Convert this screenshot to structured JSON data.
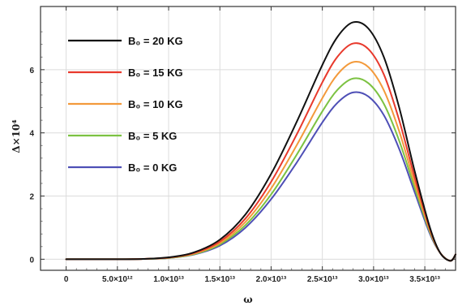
{
  "chart_data": {
    "type": "line",
    "xlabel": "ω",
    "ylabel": "Δ×10⁴",
    "xlim": [
      -2500000000000.0,
      38000000000000.0
    ],
    "ylim": [
      -0.35,
      8.0
    ],
    "x_ticks": [
      0,
      5000000000000.0,
      10000000000000.0,
      15000000000000.0,
      20000000000000.0,
      25000000000000.0,
      30000000000000.0,
      35000000000000.0
    ],
    "x_tick_labels": [
      "0",
      "5.0×10¹²",
      "1.0×10¹³",
      "1.5×10¹³",
      "2.0×10¹³",
      "2.5×10¹³",
      "3.0×10¹³",
      "3.5×10¹³"
    ],
    "y_ticks": [
      0,
      2,
      4,
      6
    ],
    "y_tick_labels": [
      "0",
      "2",
      "4",
      "6"
    ],
    "grid": true,
    "legend_position": "top-left",
    "x": [
      0,
      2500000000000.0,
      5000000000000.0,
      7500000000000.0,
      10000000000000.0,
      12500000000000.0,
      15000000000000.0,
      17500000000000.0,
      20000000000000.0,
      22500000000000.0,
      25000000000000.0,
      26500000000000.0,
      28000000000000.0,
      29500000000000.0,
      31000000000000.0,
      32500000000000.0,
      34000000000000.0,
      35500000000000.0,
      36500000000000.0,
      37500000000000.0,
      38000000000000.0
    ],
    "series": [
      {
        "name": "B₀ = 20 KG",
        "color": "#111111",
        "values": [
          0,
          0.0,
          0.0,
          0.01,
          0.06,
          0.22,
          0.62,
          1.42,
          2.7,
          4.35,
          6.15,
          7.05,
          7.5,
          7.3,
          6.4,
          4.8,
          2.8,
          1.0,
          0.2,
          -0.05,
          0.15
        ]
      },
      {
        "name": "B₀ = 15 KG",
        "color": "#e8392c",
        "values": [
          0,
          0.0,
          0.0,
          0.01,
          0.05,
          0.2,
          0.56,
          1.29,
          2.45,
          3.95,
          5.6,
          6.42,
          6.83,
          6.65,
          5.85,
          4.4,
          2.6,
          0.95,
          0.2,
          -0.05,
          0.15
        ]
      },
      {
        "name": "B₀ = 10 KG",
        "color": "#f39a3b",
        "values": [
          0,
          0.0,
          0.0,
          0.01,
          0.05,
          0.18,
          0.51,
          1.18,
          2.24,
          3.61,
          5.1,
          5.86,
          6.24,
          6.08,
          5.35,
          4.05,
          2.42,
          0.9,
          0.2,
          -0.05,
          0.15
        ]
      },
      {
        "name": "B₀ = 5 KG",
        "color": "#7cc242",
        "values": [
          0,
          0.0,
          0.0,
          0.01,
          0.04,
          0.16,
          0.47,
          1.08,
          2.05,
          3.31,
          4.68,
          5.37,
          5.72,
          5.57,
          4.92,
          3.75,
          2.27,
          0.85,
          0.2,
          -0.05,
          0.15
        ]
      },
      {
        "name": "B₀ = 0 KG",
        "color": "#4e4fb6",
        "values": [
          0,
          0.0,
          0.0,
          0.01,
          0.04,
          0.15,
          0.43,
          1.0,
          1.9,
          3.06,
          4.33,
          4.96,
          5.28,
          5.15,
          4.56,
          3.49,
          2.13,
          0.8,
          0.2,
          -0.05,
          0.15
        ]
      }
    ]
  }
}
